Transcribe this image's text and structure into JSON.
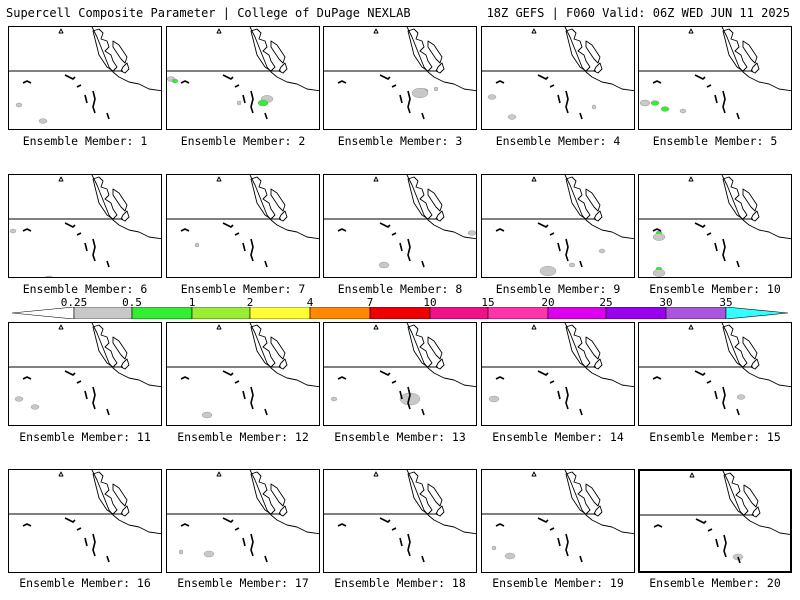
{
  "header": {
    "title_left": "Supercell Composite Parameter | College of DuPage NEXLAB",
    "title_right": "18Z GEFS | F060 Valid: 06Z WED JUN 11 2025"
  },
  "colorbar": {
    "ticks": [
      "0.25",
      "0.5",
      "1",
      "2",
      "4",
      "7",
      "10",
      "15",
      "20",
      "25",
      "30",
      "35"
    ],
    "colors": [
      "#ffffff",
      "#c8c8c8",
      "#33ee33",
      "#99ee33",
      "#ffff33",
      "#ff8800",
      "#ee0000",
      "#ee1188",
      "#ff33aa",
      "#dd00ee",
      "#9900ee",
      "#aa55dd",
      "#33ffff"
    ]
  },
  "panels": [
    {
      "label": "Ensemble Member: 1"
    },
    {
      "label": "Ensemble Member: 2"
    },
    {
      "label": "Ensemble Member: 3"
    },
    {
      "label": "Ensemble Member: 4"
    },
    {
      "label": "Ensemble Member: 5"
    },
    {
      "label": "Ensemble Member: 6"
    },
    {
      "label": "Ensemble Member: 7"
    },
    {
      "label": "Ensemble Member: 8"
    },
    {
      "label": "Ensemble Member: 9"
    },
    {
      "label": "Ensemble Member: 10"
    },
    {
      "label": "Ensemble Member: 11"
    },
    {
      "label": "Ensemble Member: 12"
    },
    {
      "label": "Ensemble Member: 13"
    },
    {
      "label": "Ensemble Member: 14"
    },
    {
      "label": "Ensemble Member: 15"
    },
    {
      "label": "Ensemble Member: 16"
    },
    {
      "label": "Ensemble Member: 17"
    },
    {
      "label": "Ensemble Member: 18"
    },
    {
      "label": "Ensemble Member: 19"
    },
    {
      "label": "Ensemble Member: 20"
    }
  ]
}
